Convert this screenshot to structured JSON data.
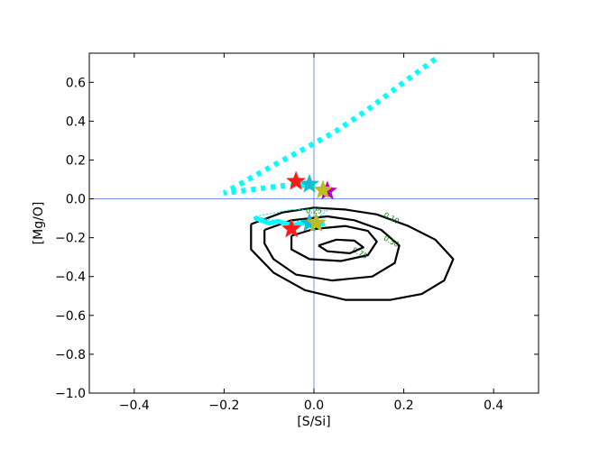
{
  "chart_data": {
    "type": "scatter",
    "xlabel": "[S/Si]",
    "ylabel": "[Mg/O]",
    "xlim": [
      -0.5,
      0.5
    ],
    "ylim": [
      -1.0,
      0.75
    ],
    "xticks": [
      -0.4,
      -0.2,
      0.0,
      0.2,
      0.4
    ],
    "xtick_labels": [
      "−0.4",
      "−0.2",
      "0.0",
      "0.2",
      "0.4"
    ],
    "yticks": [
      -1.0,
      -0.8,
      -0.6,
      -0.4,
      -0.2,
      0.0,
      0.2,
      0.4,
      0.6
    ],
    "ytick_labels": [
      "−1.0",
      "−0.8",
      "−0.6",
      "−0.4",
      "−0.2",
      "0.0",
      "0.2",
      "0.4",
      "0.6"
    ],
    "grid": false,
    "reference_lines": {
      "x": 0.0,
      "y": 0.0,
      "color": "#6b7ff0"
    },
    "contours": [
      {
        "level_label": "0.10",
        "color": "#000000",
        "label_color": "#008000",
        "points": [
          [
            -0.14,
            -0.13
          ],
          [
            -0.07,
            -0.07
          ],
          [
            0.0,
            -0.045
          ],
          [
            0.07,
            -0.055
          ],
          [
            0.14,
            -0.08
          ],
          [
            0.21,
            -0.14
          ],
          [
            0.27,
            -0.21
          ],
          [
            0.31,
            -0.31
          ],
          [
            0.29,
            -0.42
          ],
          [
            0.24,
            -0.49
          ],
          [
            0.17,
            -0.52
          ],
          [
            0.07,
            -0.52
          ],
          [
            -0.02,
            -0.47
          ],
          [
            -0.09,
            -0.38
          ],
          [
            -0.14,
            -0.26
          ],
          [
            -0.14,
            -0.13
          ]
        ],
        "label_at": [
          0.17,
          -0.11
        ]
      },
      {
        "level_label": "0.50",
        "color": "#000000",
        "label_color": "#008000",
        "points": [
          [
            -0.11,
            -0.16
          ],
          [
            -0.05,
            -0.11
          ],
          [
            0.03,
            -0.09
          ],
          [
            0.09,
            -0.11
          ],
          [
            0.15,
            -0.16
          ],
          [
            0.19,
            -0.24
          ],
          [
            0.18,
            -0.33
          ],
          [
            0.13,
            -0.4
          ],
          [
            0.04,
            -0.42
          ],
          [
            -0.04,
            -0.39
          ],
          [
            -0.09,
            -0.31
          ],
          [
            -0.11,
            -0.23
          ],
          [
            -0.11,
            -0.16
          ]
        ],
        "label_at": [
          0.17,
          -0.23
        ]
      },
      {
        "level_label": "0.75",
        "color": "#000000",
        "label_color": "#008000",
        "points": [
          [
            -0.05,
            -0.19
          ],
          [
            0.0,
            -0.155
          ],
          [
            0.07,
            -0.14
          ],
          [
            0.12,
            -0.165
          ],
          [
            0.14,
            -0.22
          ],
          [
            0.12,
            -0.29
          ],
          [
            0.06,
            -0.32
          ],
          [
            -0.01,
            -0.31
          ],
          [
            -0.05,
            -0.26
          ],
          [
            -0.05,
            -0.19
          ]
        ],
        "label_at": [
          0.1,
          -0.29
        ]
      },
      {
        "level_label": "",
        "color": "#000000",
        "label_color": "#008000",
        "points": [
          [
            0.01,
            -0.24
          ],
          [
            0.05,
            -0.21
          ],
          [
            0.09,
            -0.215
          ],
          [
            0.11,
            -0.25
          ],
          [
            0.08,
            -0.28
          ],
          [
            0.03,
            -0.27
          ],
          [
            0.01,
            -0.24
          ]
        ],
        "label_at": null
      },
      {
        "level_label": "0.25",
        "color": "#00e5e5",
        "label_color": "#008000",
        "points": [
          [
            -0.13,
            -0.09
          ],
          [
            -0.05,
            -0.055
          ],
          [
            0.03,
            -0.06
          ],
          [
            0.0,
            -0.11
          ],
          [
            -0.07,
            -0.12
          ],
          [
            -0.13,
            -0.09
          ]
        ],
        "label_at": [
          0.0,
          -0.075
        ]
      }
    ],
    "dotted_path": {
      "color": "#00ffff",
      "points": [
        [
          0.27,
          0.72
        ],
        [
          0.2,
          0.6
        ],
        [
          0.12,
          0.46
        ],
        [
          0.05,
          0.35
        ],
        [
          -0.02,
          0.26
        ],
        [
          -0.1,
          0.16
        ],
        [
          -0.2,
          0.03
        ],
        [
          -0.13,
          0.05
        ],
        [
          -0.06,
          0.07
        ],
        [
          -0.02,
          0.07
        ],
        [
          0.02,
          0.05
        ]
      ]
    },
    "wavy_path": {
      "color": "#00ffff",
      "points": [
        [
          -0.13,
          -0.1
        ],
        [
          -0.1,
          -0.125
        ],
        [
          -0.08,
          -0.115
        ],
        [
          -0.05,
          -0.135
        ],
        [
          -0.02,
          -0.125
        ],
        [
          0.0,
          -0.13
        ],
        [
          0.02,
          -0.13
        ]
      ]
    },
    "stars": [
      {
        "x": -0.04,
        "y": 0.09,
        "color": "#ff1a1a"
      },
      {
        "x": -0.01,
        "y": 0.075,
        "color": "#17becf"
      },
      {
        "x": 0.03,
        "y": 0.04,
        "color": "#c000c0"
      },
      {
        "x": 0.02,
        "y": 0.045,
        "color": "#bcbd22"
      },
      {
        "x": -0.05,
        "y": -0.155,
        "color": "#ff1a1a"
      },
      {
        "x": -0.01,
        "y": -0.125,
        "color": "#17becf"
      },
      {
        "x": 0.005,
        "y": -0.125,
        "color": "#c000c0"
      },
      {
        "x": 0.005,
        "y": -0.125,
        "color": "#bcbd22"
      }
    ]
  }
}
